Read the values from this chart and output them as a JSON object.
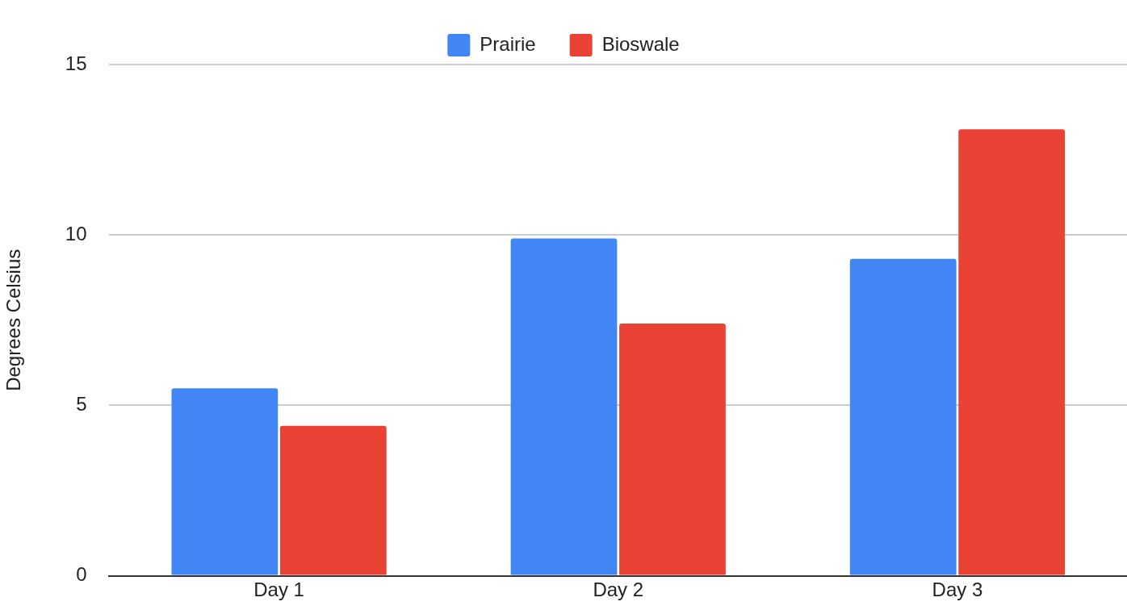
{
  "chart_data": {
    "type": "bar",
    "ylabel": "Degrees Celsius",
    "categories": [
      "Day 1",
      "Day 2",
      "Day 3"
    ],
    "series": [
      {
        "name": "Prairie",
        "color": "#4285f4",
        "values": [
          5.5,
          9.9,
          9.3
        ]
      },
      {
        "name": "Bioswale",
        "color": "#ea4335",
        "values": [
          4.4,
          7.4,
          13.1
        ]
      }
    ],
    "ylim": [
      0,
      15
    ],
    "yticks": [
      0,
      5,
      10,
      15
    ],
    "grid": "y",
    "legend": "top"
  }
}
